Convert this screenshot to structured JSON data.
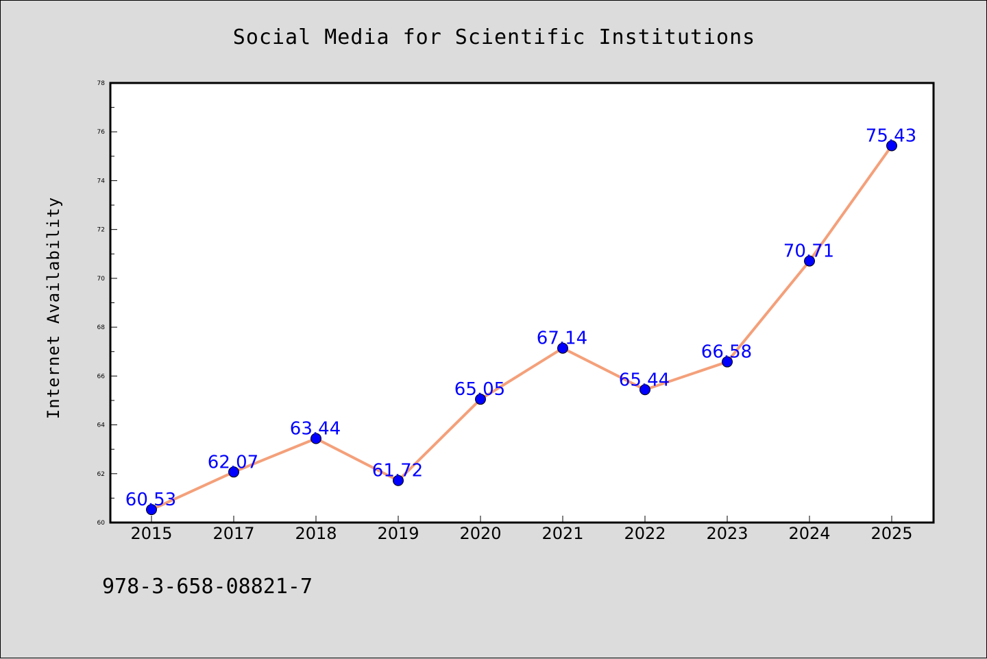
{
  "chart_data": {
    "type": "line",
    "title": "Social Media for Scientific Institutions",
    "xlabel": "",
    "ylabel": "Internet Availability",
    "categories": [
      "2015",
      "2017",
      "2018",
      "2019",
      "2020",
      "2021",
      "2022",
      "2023",
      "2024",
      "2025"
    ],
    "series": [
      {
        "values": [
          60.53,
          62.07,
          63.44,
          61.72,
          65.05,
          67.14,
          65.44,
          66.58,
          70.71,
          75.43
        ]
      }
    ],
    "data_labels": [
      "60.53",
      "62.07",
      "63.44",
      "61.72",
      "65.05",
      "67.14",
      "65.44",
      "66.58",
      "70.71",
      "75.43"
    ],
    "ylim": [
      60,
      78
    ],
    "yticks": [
      60,
      62,
      64,
      66,
      68,
      70,
      72,
      74,
      76,
      78
    ],
    "grid": false,
    "legend": "none",
    "colors": {
      "line": "#f4a07a",
      "marker": "#0000ff",
      "data_label": "#0000ff",
      "plot_bg": "#ffffff",
      "page_bg": "#dcdcdc"
    }
  },
  "footnote": "978-3-658-08821-7"
}
